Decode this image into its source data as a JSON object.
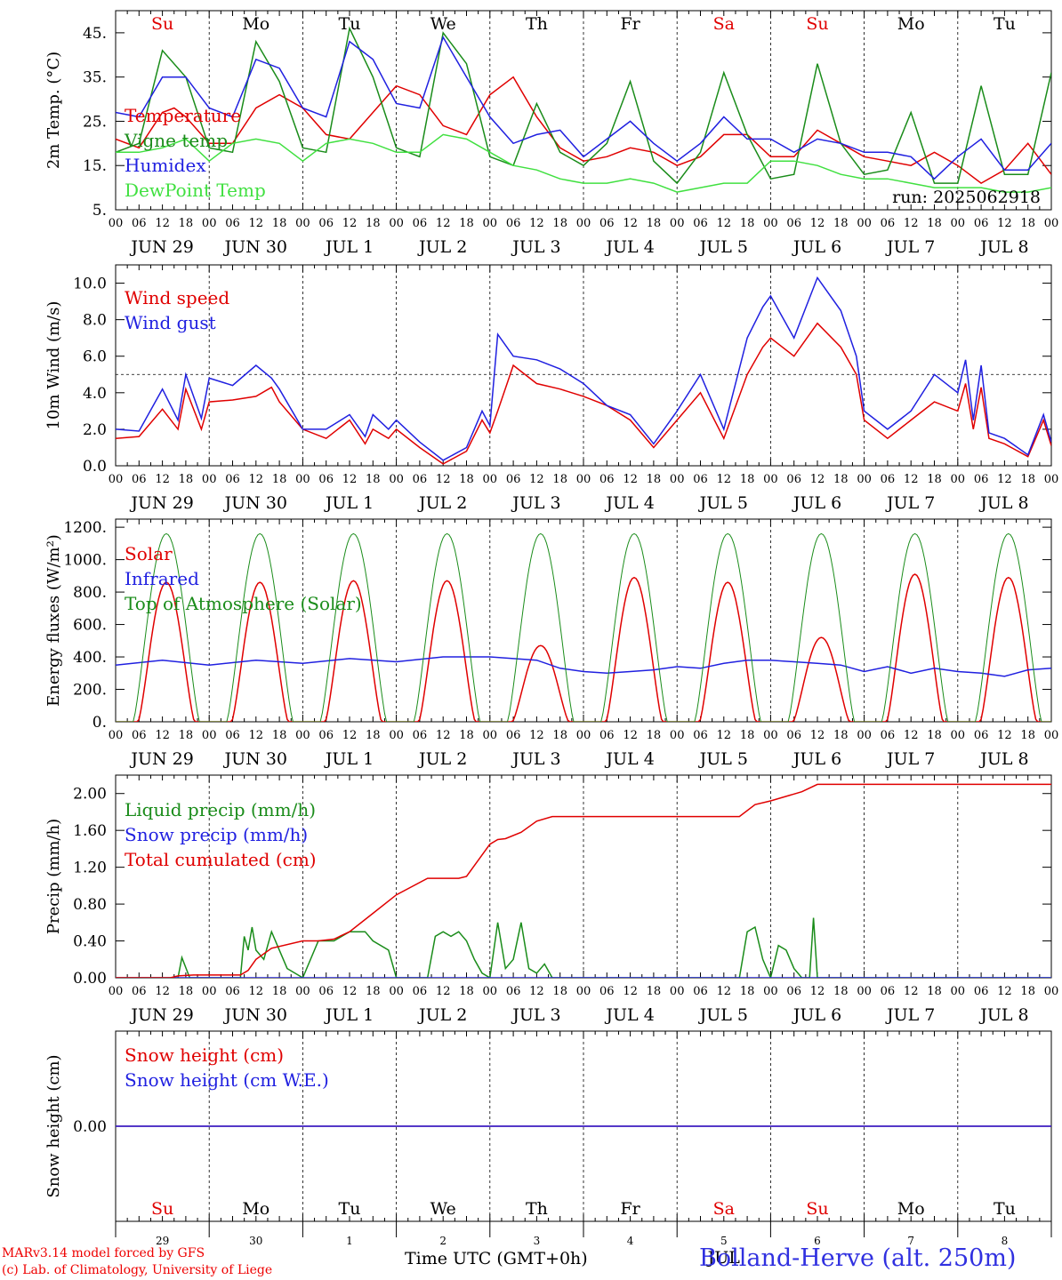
{
  "run_label": "run: 2025062918",
  "day_names": [
    "Su",
    "Mo",
    "Tu",
    "We",
    "Th",
    "Fr",
    "Sa",
    "Su",
    "Mo",
    "Tu"
  ],
  "day_name_colors": [
    "#e00000",
    "#000000",
    "#000000",
    "#000000",
    "#000000",
    "#000000",
    "#e00000",
    "#e00000",
    "#000000",
    "#000000"
  ],
  "date_labels": [
    "JUN 29",
    "JUN 30",
    "JUL  1",
    "JUL  2",
    "JUL  3",
    "JUL  4",
    "JUL  5",
    "JUL  6",
    "JUL  7",
    "JUL  8"
  ],
  "hour_ticks": [
    "00",
    "06",
    "12",
    "18"
  ],
  "last_hour_tick": "00",
  "bottom_day_numbers": [
    "29",
    "30",
    "1",
    "2",
    "3",
    "4",
    "5",
    "6",
    "7",
    "8"
  ],
  "bottom_overlap_text": "JUL",
  "x_title": "Time UTC (GMT+0h)",
  "station": "Bolland-Herve (alt. 250m)",
  "credits": [
    "MARv3.14 model forced by GFS",
    "(c) Lab. of Climatology, University of Liege"
  ],
  "chart_data": [
    {
      "type": "line",
      "ylabel": "2m Temp. (°C)",
      "ylim": [
        5,
        50
      ],
      "yticks": [
        5,
        15,
        25,
        35,
        45
      ],
      "ytick_labels": [
        "5.",
        "15.",
        "25.",
        "35.",
        "45."
      ],
      "x_unit": "hours since 2025-06-29 00 UTC",
      "xlim": [
        0,
        240
      ],
      "series": [
        {
          "name": "Temperature",
          "color": "#e00000",
          "x": [
            0,
            6,
            12,
            15,
            18,
            24,
            30,
            36,
            42,
            48,
            54,
            60,
            66,
            72,
            78,
            84,
            90,
            96,
            102,
            108,
            114,
            120,
            126,
            132,
            138,
            144,
            150,
            156,
            162,
            168,
            174,
            180,
            186,
            192,
            198,
            204,
            210,
            216,
            222,
            228,
            234,
            240
          ],
          "y": [
            21,
            19,
            27,
            28,
            26,
            20,
            20,
            28,
            31,
            28,
            22,
            21,
            27,
            33,
            31,
            24,
            22,
            31,
            35,
            26,
            19,
            16,
            17,
            19,
            18,
            15,
            17,
            22,
            22,
            17,
            17,
            23,
            20,
            17,
            16,
            15,
            18,
            15,
            11,
            14,
            20,
            13
          ]
        },
        {
          "name": "Vigne temp",
          "color": "#1a8c1a",
          "x": [
            0,
            6,
            12,
            18,
            24,
            30,
            36,
            42,
            48,
            54,
            60,
            66,
            72,
            78,
            84,
            90,
            96,
            102,
            108,
            114,
            120,
            126,
            132,
            138,
            144,
            150,
            156,
            162,
            168,
            174,
            180,
            186,
            192,
            198,
            204,
            210,
            216,
            222,
            228,
            234,
            240
          ],
          "y": [
            18,
            20,
            41,
            35,
            19,
            18,
            43,
            34,
            19,
            18,
            46,
            35,
            19,
            17,
            45,
            38,
            17,
            15,
            29,
            18,
            15,
            20,
            34,
            16,
            11,
            18,
            36,
            22,
            12,
            13,
            38,
            20,
            13,
            14,
            27,
            11,
            11,
            33,
            13,
            13,
            36
          ]
        },
        {
          "name": "Humidex",
          "color": "#2020e0",
          "x": [
            0,
            6,
            12,
            18,
            24,
            30,
            36,
            42,
            48,
            54,
            60,
            66,
            72,
            78,
            84,
            90,
            96,
            102,
            108,
            114,
            120,
            126,
            132,
            138,
            144,
            150,
            156,
            162,
            168,
            174,
            180,
            186,
            192,
            198,
            204,
            210,
            216,
            222,
            228,
            234,
            240
          ],
          "y": [
            27,
            26,
            35,
            35,
            28,
            26,
            39,
            37,
            28,
            26,
            43,
            39,
            29,
            28,
            44,
            35,
            26,
            20,
            22,
            23,
            17,
            21,
            25,
            20,
            16,
            20,
            26,
            21,
            21,
            18,
            21,
            20,
            18,
            18,
            17,
            12,
            17,
            21,
            14,
            14,
            20
          ]
        },
        {
          "name": "DewPoint Temp",
          "color": "#40e040",
          "x": [
            0,
            6,
            12,
            18,
            24,
            30,
            36,
            42,
            48,
            54,
            60,
            66,
            72,
            78,
            84,
            90,
            96,
            102,
            108,
            114,
            120,
            126,
            132,
            138,
            144,
            150,
            156,
            162,
            168,
            174,
            180,
            186,
            192,
            198,
            204,
            210,
            216,
            222,
            228,
            234,
            240
          ],
          "y": [
            18,
            18,
            19,
            21,
            16,
            20,
            21,
            20,
            16,
            20,
            21,
            20,
            18,
            18,
            22,
            21,
            18,
            15,
            14,
            12,
            11,
            11,
            12,
            11,
            9,
            10,
            11,
            11,
            16,
            16,
            15,
            13,
            12,
            12,
            11,
            10,
            10,
            10,
            9,
            9,
            10
          ]
        }
      ]
    },
    {
      "type": "line",
      "ylabel": "10m Wind (m/s)",
      "ylim": [
        0,
        11
      ],
      "yticks": [
        0,
        2,
        4,
        6,
        8,
        10
      ],
      "ytick_labels": [
        "0.0",
        "2.0",
        "4.0",
        "6.0",
        "8.0",
        "10.0"
      ],
      "hline": 5,
      "x_unit": "hours since 2025-06-29 00 UTC",
      "xlim": [
        0,
        240
      ],
      "series": [
        {
          "name": "Wind speed",
          "color": "#e00000",
          "x": [
            0,
            6,
            12,
            16,
            18,
            22,
            24,
            30,
            36,
            40,
            42,
            48,
            54,
            60,
            64,
            66,
            70,
            72,
            78,
            84,
            90,
            94,
            96,
            98,
            102,
            108,
            114,
            120,
            126,
            132,
            138,
            144,
            150,
            156,
            162,
            166,
            168,
            174,
            180,
            186,
            190,
            192,
            198,
            204,
            210,
            216,
            218,
            220,
            222,
            224,
            228,
            234,
            238,
            240
          ],
          "y": [
            1.5,
            1.6,
            3.1,
            2.0,
            4.2,
            2.0,
            3.5,
            3.6,
            3.8,
            4.3,
            3.5,
            2.0,
            1.5,
            2.5,
            1.2,
            2.0,
            1.5,
            2.0,
            1.0,
            0.1,
            0.8,
            2.5,
            1.8,
            3.0,
            5.5,
            4.5,
            4.2,
            3.8,
            3.3,
            2.5,
            1.0,
            2.5,
            4.0,
            1.5,
            5.0,
            6.5,
            7.0,
            6.0,
            7.8,
            6.5,
            5.0,
            2.5,
            1.5,
            2.5,
            3.5,
            3.0,
            4.5,
            2.0,
            4.3,
            1.5,
            1.2,
            0.5,
            2.5,
            1.1
          ]
        },
        {
          "name": "Wind gust",
          "color": "#2020e0",
          "x": [
            0,
            6,
            12,
            16,
            18,
            22,
            24,
            30,
            36,
            40,
            42,
            48,
            54,
            60,
            64,
            66,
            70,
            72,
            78,
            84,
            90,
            94,
            96,
            98,
            102,
            108,
            114,
            120,
            126,
            132,
            138,
            144,
            150,
            156,
            162,
            166,
            168,
            174,
            180,
            186,
            190,
            192,
            198,
            204,
            210,
            216,
            218,
            220,
            222,
            224,
            228,
            234,
            238,
            240
          ],
          "y": [
            2.0,
            1.9,
            4.2,
            2.5,
            5.0,
            2.6,
            4.8,
            4.4,
            5.5,
            4.8,
            4.2,
            2.0,
            2.0,
            2.8,
            1.6,
            2.8,
            2.0,
            2.5,
            1.3,
            0.3,
            1.0,
            3.0,
            2.2,
            7.2,
            6.0,
            5.8,
            5.3,
            4.5,
            3.3,
            2.8,
            1.2,
            3.0,
            5.0,
            2.0,
            7.0,
            8.7,
            9.3,
            7.0,
            10.3,
            8.5,
            6.0,
            3.0,
            2.0,
            3.0,
            5.0,
            4.0,
            5.8,
            2.5,
            5.5,
            1.8,
            1.5,
            0.6,
            2.8,
            1.3
          ]
        }
      ]
    },
    {
      "type": "line",
      "ylabel": "Energy fluxes (W/m²)",
      "ylim": [
        0,
        1250
      ],
      "yticks": [
        0,
        200,
        400,
        600,
        800,
        1000,
        1200
      ],
      "ytick_labels": [
        "0.",
        "200.",
        "400.",
        "600.",
        "800.",
        "1000.",
        "1200."
      ],
      "x_unit": "hours since 2025-06-29 00 UTC",
      "xlim": [
        0,
        240
      ],
      "series": [
        {
          "name": "Solar",
          "color": "#e00000",
          "daily_peak": [
            860,
            860,
            870,
            870,
            470,
            890,
            860,
            520,
            910,
            890
          ]
        },
        {
          "name": "Infrared",
          "color": "#2020e0",
          "x": [
            0,
            12,
            24,
            36,
            48,
            60,
            72,
            84,
            96,
            108,
            114,
            120,
            126,
            132,
            138,
            144,
            150,
            156,
            162,
            168,
            174,
            180,
            186,
            192,
            198,
            204,
            210,
            216,
            222,
            228,
            234,
            240
          ],
          "y": [
            350,
            380,
            350,
            380,
            360,
            390,
            370,
            400,
            400,
            380,
            330,
            310,
            300,
            310,
            320,
            340,
            330,
            360,
            380,
            380,
            370,
            360,
            350,
            310,
            340,
            300,
            330,
            310,
            300,
            280,
            320,
            330
          ]
        },
        {
          "name": "Top of Atmosphere (Solar)",
          "color": "#1a8c1a",
          "daily_peak": [
            1160,
            1160,
            1160,
            1160,
            1160,
            1160,
            1160,
            1160,
            1160,
            1160
          ]
        }
      ]
    },
    {
      "type": "line",
      "ylabel": "Precip (mm/h)",
      "ylim": [
        0,
        2.2
      ],
      "yticks": [
        0,
        0.4,
        0.8,
        1.2,
        1.6,
        2.0
      ],
      "ytick_labels": [
        "0.00",
        "0.40",
        "0.80",
        "1.20",
        "1.60",
        "2.00"
      ],
      "x_unit": "hours since 2025-06-29 00 UTC",
      "xlim": [
        0,
        240
      ],
      "series": [
        {
          "name": "Liquid precip (mm/h)",
          "color": "#1a8c1a",
          "x": [
            0,
            16,
            17,
            19,
            24,
            32,
            33,
            34,
            35,
            36,
            38,
            40,
            42,
            44,
            48,
            52,
            56,
            60,
            64,
            66,
            70,
            72,
            80,
            82,
            84,
            86,
            88,
            90,
            92,
            94,
            96,
            98,
            100,
            102,
            104,
            106,
            108,
            110,
            112,
            140,
            160,
            162,
            164,
            166,
            168,
            170,
            172,
            174,
            176,
            178,
            179,
            180,
            240
          ],
          "y": [
            0,
            0,
            0.22,
            0,
            0,
            0,
            0.45,
            0.3,
            0.55,
            0.3,
            0.2,
            0.5,
            0.3,
            0.1,
            0,
            0.4,
            0.4,
            0.5,
            0.5,
            0.4,
            0.3,
            0,
            0,
            0.45,
            0.5,
            0.45,
            0.5,
            0.4,
            0.2,
            0.05,
            0,
            0.6,
            0.1,
            0.2,
            0.6,
            0.1,
            0.05,
            0.15,
            0,
            0,
            0,
            0.5,
            0.55,
            0.2,
            0,
            0.35,
            0.3,
            0.1,
            0,
            0,
            0.65,
            0,
            0
          ]
        },
        {
          "name": "Snow precip (mm/h)",
          "color": "#2020e0",
          "x": [
            0,
            240
          ],
          "y": [
            0,
            0
          ]
        },
        {
          "name": "Total cumulated (cm)",
          "color": "#e00000",
          "x": [
            0,
            14,
            16,
            20,
            24,
            32,
            34,
            36,
            40,
            48,
            52,
            56,
            60,
            66,
            72,
            80,
            84,
            88,
            90,
            96,
            98,
            100,
            104,
            108,
            112,
            120,
            150,
            160,
            164,
            168,
            176,
            180,
            240
          ],
          "y": [
            0,
            0,
            0.02,
            0.03,
            0.03,
            0.03,
            0.08,
            0.2,
            0.32,
            0.4,
            0.4,
            0.42,
            0.5,
            0.7,
            0.9,
            1.08,
            1.08,
            1.08,
            1.1,
            1.45,
            1.5,
            1.51,
            1.58,
            1.7,
            1.75,
            1.75,
            1.75,
            1.75,
            1.88,
            1.92,
            2.02,
            2.1,
            2.1
          ]
        }
      ]
    },
    {
      "type": "line",
      "ylabel": "Snow height (cm)",
      "ylim": [
        -1,
        1
      ],
      "yticks": [
        0
      ],
      "ytick_labels": [
        "0.00"
      ],
      "x_unit": "hours since 2025-06-29 00 UTC",
      "xlim": [
        0,
        240
      ],
      "series": [
        {
          "name": "Snow height (cm)",
          "color": "#e00000",
          "x": [
            0,
            240
          ],
          "y": [
            0,
            0
          ]
        },
        {
          "name": "Snow height (cm W.E.)",
          "color": "#2020e0",
          "x": [
            0,
            240
          ],
          "y": [
            0,
            0
          ]
        }
      ]
    }
  ]
}
